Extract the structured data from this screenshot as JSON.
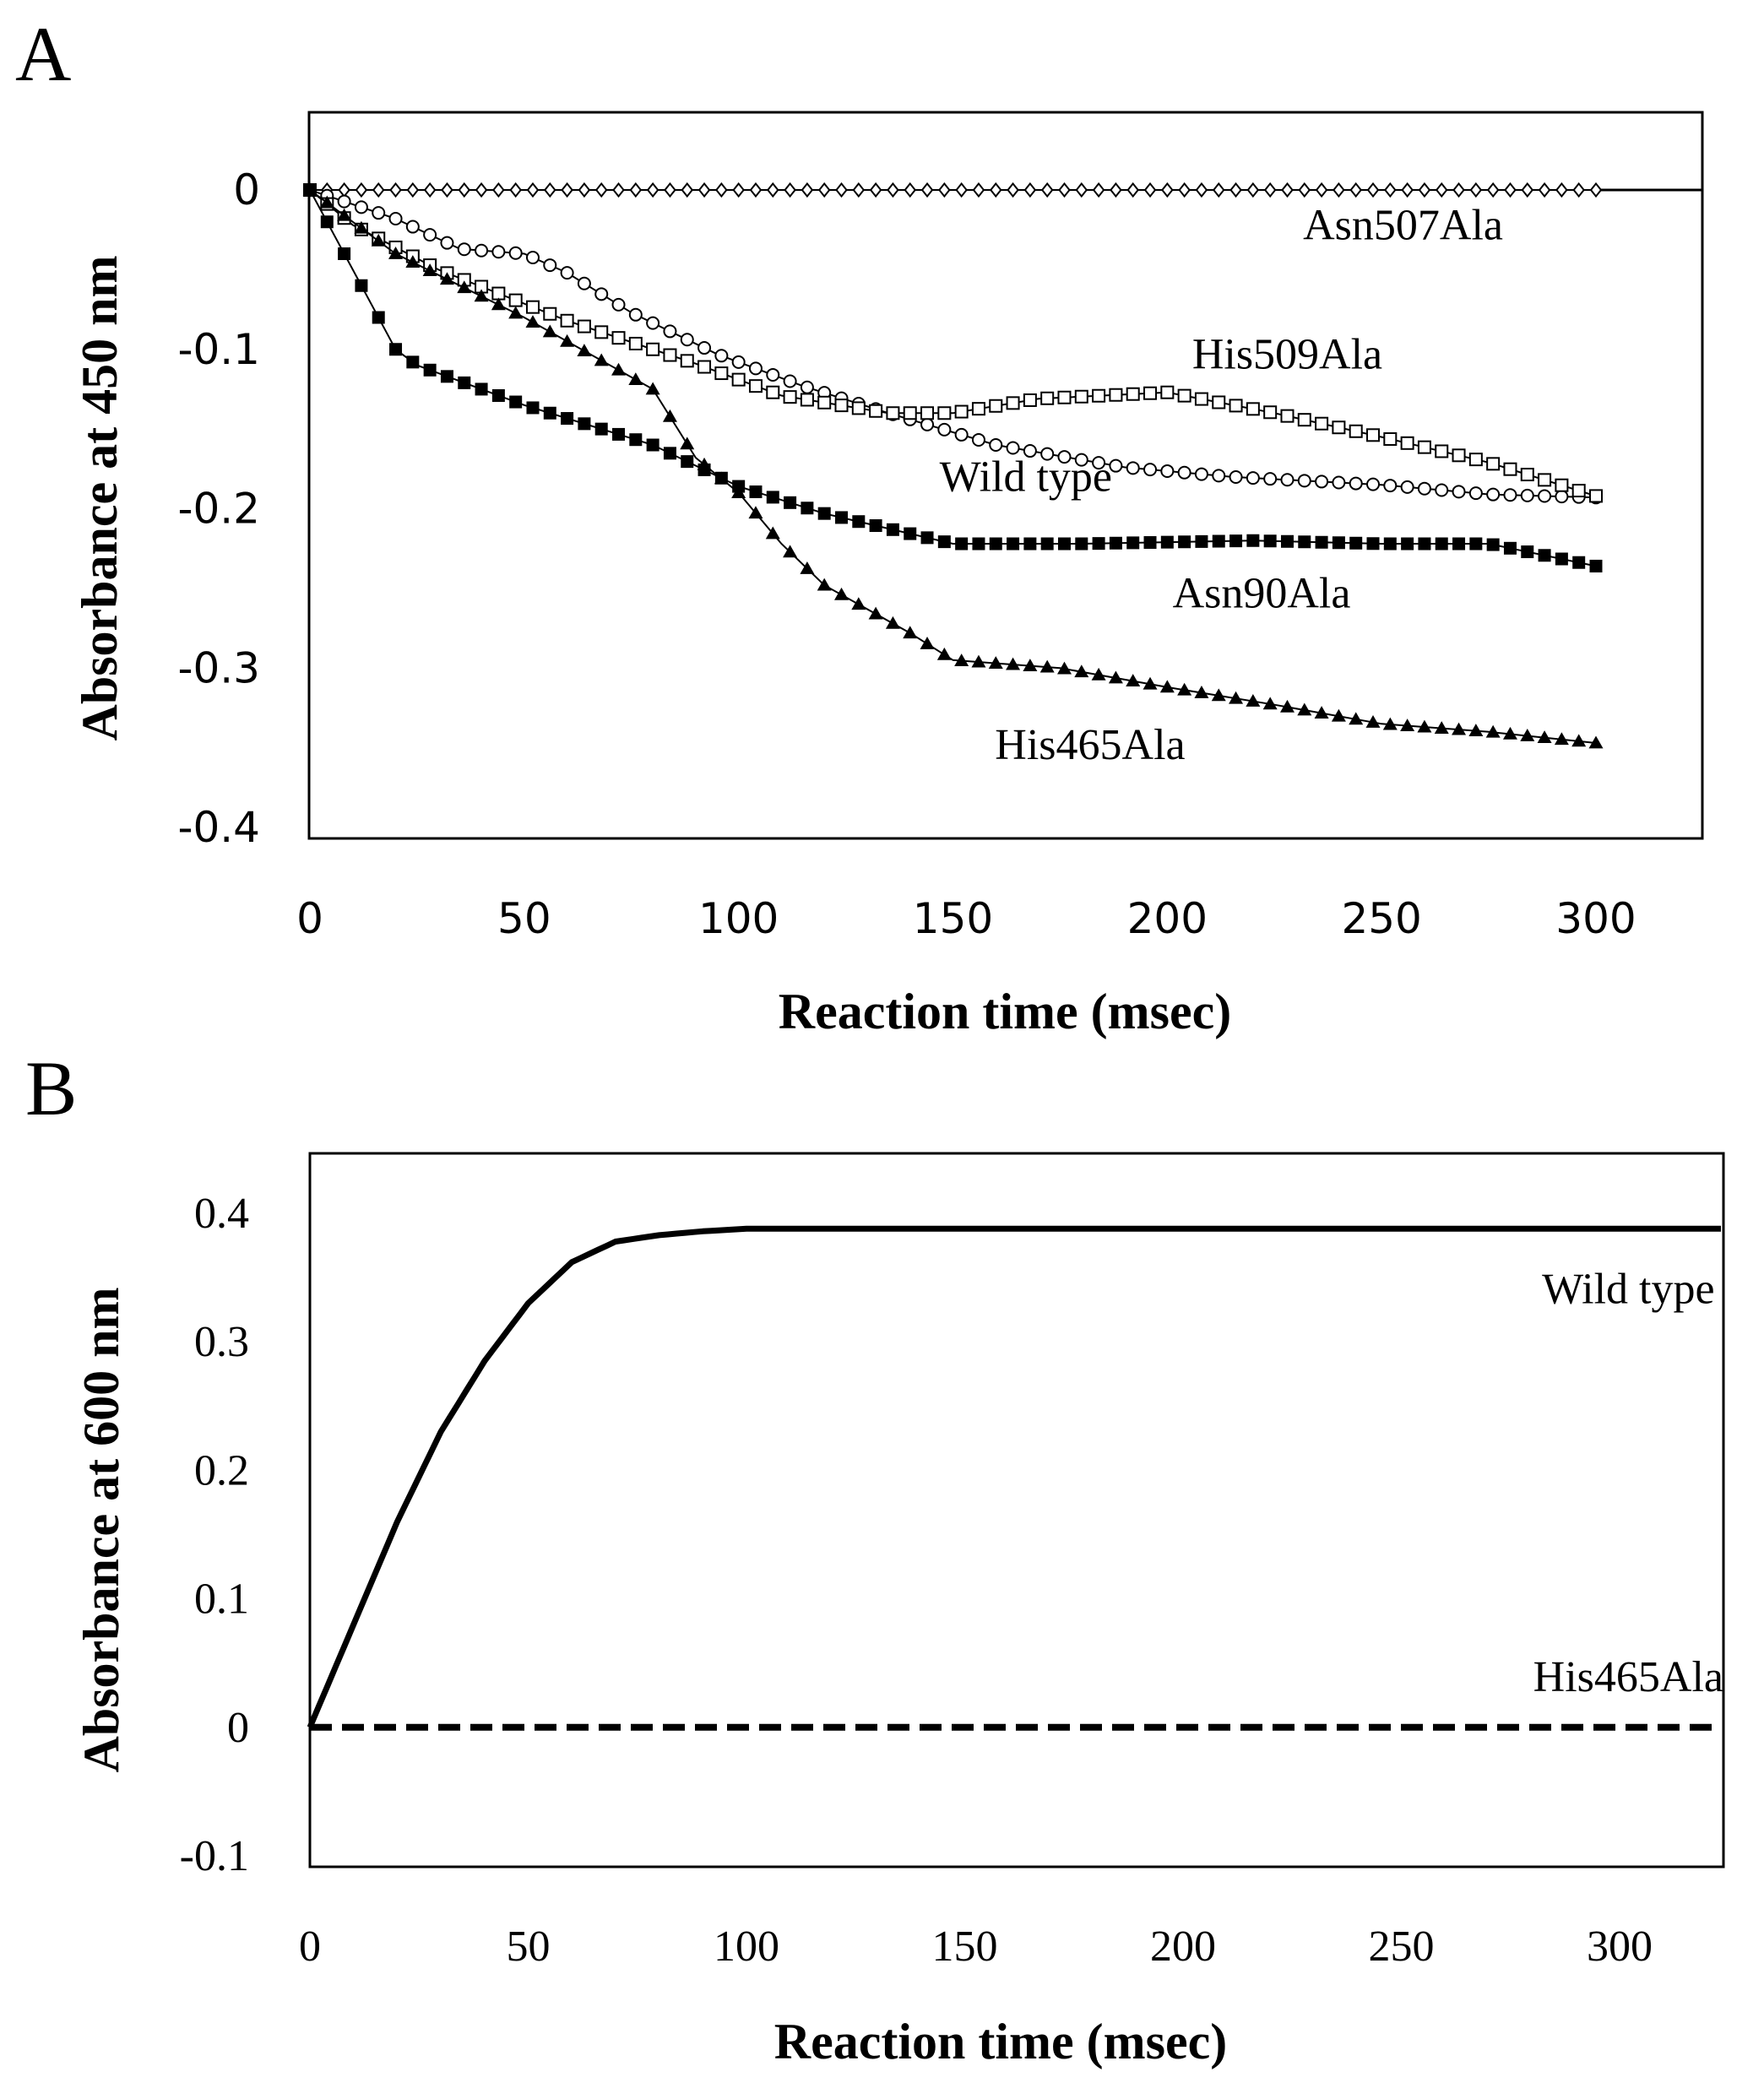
{
  "panels": [
    {
      "letter": "A",
      "chart_data": {
        "type": "line",
        "xlabel": "Reaction time (msec)",
        "ylabel": "Absorbance at 450 nm",
        "xlim": [
          0,
          320
        ],
        "ylim": [
          -0.4,
          0.05
        ],
        "xticks": [
          0,
          50,
          100,
          150,
          200,
          250,
          300
        ],
        "yticks": [
          0,
          -0.1,
          -0.2,
          -0.3,
          -0.4
        ],
        "xtick_labels": [
          "0",
          "50",
          "100",
          "150",
          "200",
          "250",
          "300"
        ],
        "ytick_labels": [
          "0",
          "-0.1",
          "-0.2",
          "-0.3",
          "-0.4"
        ],
        "grid": false,
        "series": [
          {
            "name": "Asn507Ala",
            "marker": "open-diamond",
            "label_at": [
              255,
              -0.031
            ],
            "x": [
              0,
              300
            ],
            "y": [
              0,
              0
            ]
          },
          {
            "name": "Wild type",
            "marker": "open-circle",
            "label_at": [
              167,
              -0.189
            ],
            "x": [
              0,
              20,
              35,
              50,
              60,
              75,
              95,
              115,
              135,
              160,
              190,
              215,
              250,
              275,
              300
            ],
            "y": [
              0,
              -0.018,
              -0.037,
              -0.04,
              -0.052,
              -0.077,
              -0.103,
              -0.123,
              -0.14,
              -0.16,
              -0.174,
              -0.18,
              -0.185,
              -0.191,
              -0.193
            ]
          },
          {
            "name": "His509Ala",
            "marker": "open-square",
            "label_at": [
              228,
              -0.112
            ],
            "x": [
              0,
              10,
              30,
              60,
              90,
              110,
              135,
              150,
              170,
              200,
              225,
              250,
              275,
              300
            ],
            "y": [
              0,
              -0.022,
              -0.05,
              -0.082,
              -0.109,
              -0.129,
              -0.14,
              -0.14,
              -0.131,
              -0.127,
              -0.14,
              -0.155,
              -0.171,
              -0.192
            ]
          },
          {
            "name": "Asn90Ala",
            "marker": "filled-square",
            "label_at": [
              222,
              -0.262
            ],
            "x": [
              0,
              10,
              20,
              25,
              50,
              80,
              100,
              120,
              150,
              180,
              220,
              250,
              275,
              300
            ],
            "y": [
              0,
              -0.05,
              -0.1,
              -0.11,
              -0.135,
              -0.16,
              -0.186,
              -0.203,
              -0.222,
              -0.222,
              -0.22,
              -0.222,
              -0.222,
              -0.236
            ]
          },
          {
            "name": "His465Ala",
            "marker": "filled-triangle",
            "label_at": [
              182,
              -0.357
            ],
            "x": [
              0,
              20,
              50,
              80,
              90,
              100,
              110,
              120,
              140,
              150,
              175,
              200,
              225,
              250,
              275,
              300
            ],
            "y": [
              0,
              -0.04,
              -0.08,
              -0.125,
              -0.168,
              -0.19,
              -0.222,
              -0.248,
              -0.278,
              -0.295,
              -0.3,
              -0.312,
              -0.323,
              -0.335,
              -0.34,
              -0.347
            ]
          }
        ]
      }
    },
    {
      "letter": "B",
      "chart_data": {
        "type": "line",
        "xlabel": "Reaction time (msec)",
        "ylabel": "Absorbance at 600 nm",
        "xlim": [
          0,
          325
        ],
        "ylim": [
          -0.1,
          0.45
        ],
        "xticks": [
          0,
          50,
          100,
          150,
          200,
          250,
          300
        ],
        "yticks": [
          -0.1,
          0,
          0.1,
          0.2,
          0.3,
          0.4
        ],
        "xtick_labels": [
          "0",
          "50",
          "100",
          "150",
          "200",
          "250",
          "300"
        ],
        "ytick_labels": [
          "-0.1",
          "0",
          "0.1",
          "0.2",
          "0.3",
          "0.4"
        ],
        "grid": false,
        "series": [
          {
            "name": "Wild type",
            "style": "solid",
            "label_at": [
              302,
              0.33
            ],
            "x": [
              0,
              10,
              20,
              30,
              40,
              50,
              60,
              70,
              80,
              90,
              100,
              150,
              200,
              250,
              300,
              325
            ],
            "y": [
              0,
              0.08,
              0.16,
              0.23,
              0.285,
              0.33,
              0.362,
              0.378,
              0.383,
              0.386,
              0.388,
              0.388,
              0.388,
              0.388,
              0.388,
              0.388
            ]
          },
          {
            "name": "His465Ala",
            "style": "dashed",
            "label_at": [
              302,
              0.028
            ],
            "x": [
              0,
              325
            ],
            "y": [
              0,
              0
            ]
          }
        ]
      }
    }
  ]
}
